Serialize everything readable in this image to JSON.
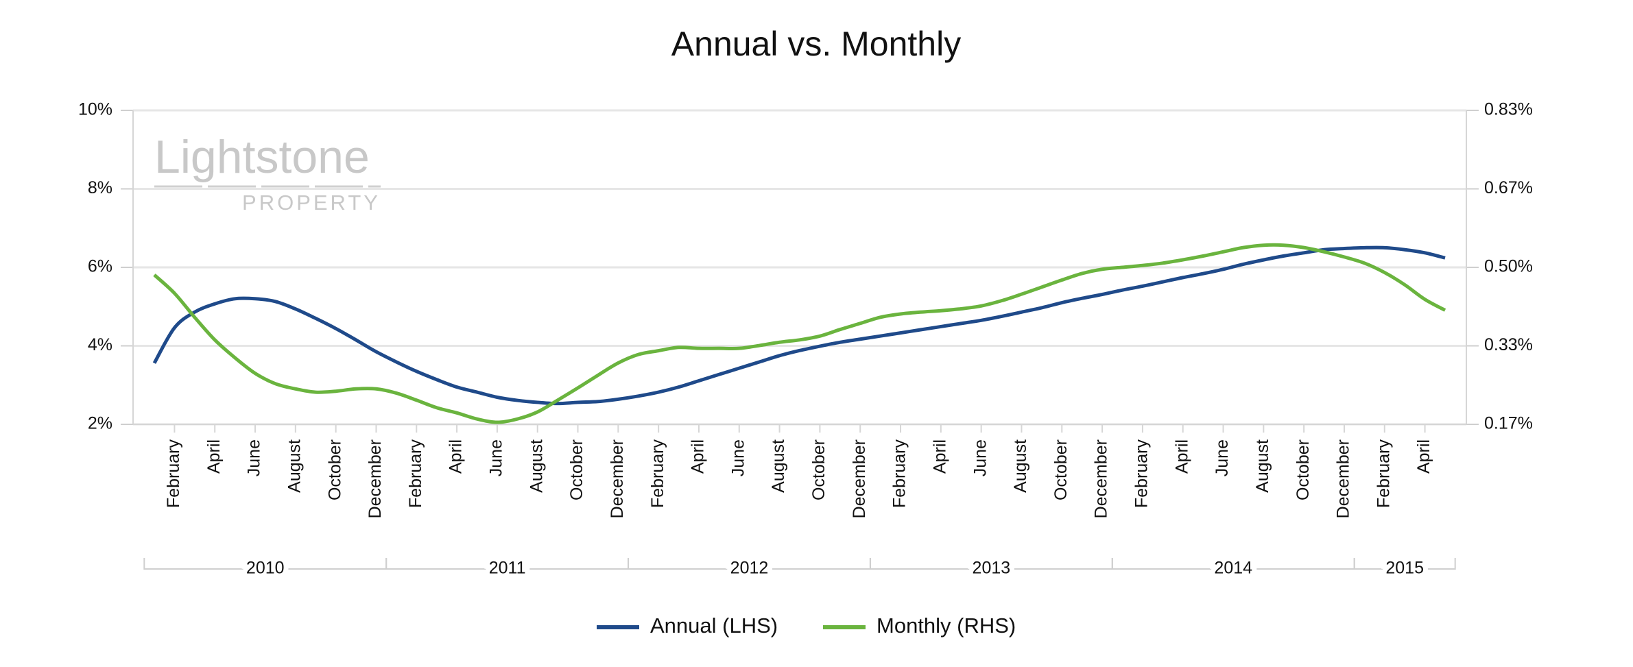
{
  "chart_data": {
    "type": "line",
    "title": "Annual vs. Monthly",
    "watermark": [
      "Lightstone",
      "PROPERTY"
    ],
    "categories": [
      null,
      "February",
      null,
      "April",
      null,
      "June",
      null,
      "August",
      null,
      "October",
      null,
      "December",
      null,
      "February",
      null,
      "April",
      null,
      "June",
      null,
      "August",
      null,
      "October",
      null,
      "December",
      null,
      "February",
      null,
      "April",
      null,
      "June",
      null,
      "August",
      null,
      "October",
      null,
      "December",
      null,
      "February",
      null,
      "April",
      null,
      "June",
      null,
      "August",
      null,
      "October",
      null,
      "December",
      null,
      "February",
      null,
      "April",
      null,
      "June",
      null,
      "August",
      null,
      "October",
      null,
      "December",
      null,
      "February",
      null,
      "April",
      null
    ],
    "x_groups": [
      "2010",
      "2011",
      "2012",
      "2013",
      "2014",
      "2015"
    ],
    "series": [
      {
        "name": "Annual (LHS)",
        "color": "#1f4a8a",
        "axis": "y",
        "values": [
          3.56,
          4.46,
          4.86,
          5.07,
          5.2,
          5.2,
          5.13,
          4.94,
          4.7,
          4.44,
          4.15,
          3.85,
          3.59,
          3.35,
          3.14,
          2.95,
          2.82,
          2.69,
          2.61,
          2.56,
          2.53,
          2.56,
          2.58,
          2.64,
          2.72,
          2.82,
          2.95,
          3.11,
          3.27,
          3.43,
          3.59,
          3.75,
          3.88,
          3.99,
          4.09,
          4.17,
          4.25,
          4.33,
          4.41,
          4.49,
          4.57,
          4.65,
          4.75,
          4.86,
          4.97,
          5.1,
          5.21,
          5.31,
          5.42,
          5.52,
          5.63,
          5.74,
          5.84,
          5.95,
          6.08,
          6.19,
          6.29,
          6.37,
          6.45,
          6.48,
          6.5,
          6.5,
          6.45,
          6.37,
          6.24
        ]
      },
      {
        "name": "Monthly (RHS)",
        "color": "#6ab43e",
        "axis": "y2",
        "values": [
          0.484,
          0.445,
          0.394,
          0.346,
          0.308,
          0.275,
          0.253,
          0.242,
          0.235,
          0.237,
          0.242,
          0.242,
          0.233,
          0.218,
          0.202,
          0.191,
          0.178,
          0.171,
          0.178,
          0.193,
          0.218,
          0.244,
          0.271,
          0.297,
          0.315,
          0.323,
          0.33,
          0.328,
          0.328,
          0.328,
          0.334,
          0.341,
          0.346,
          0.354,
          0.368,
          0.381,
          0.394,
          0.401,
          0.405,
          0.408,
          0.412,
          0.418,
          0.429,
          0.443,
          0.458,
          0.473,
          0.487,
          0.496,
          0.5,
          0.504,
          0.509,
          0.516,
          0.524,
          0.533,
          0.542,
          0.547,
          0.547,
          0.542,
          0.533,
          0.522,
          0.509,
          0.489,
          0.463,
          0.432,
          0.409
        ]
      }
    ],
    "ylim": [
      2,
      10
    ],
    "yticks": [
      {
        "value": 2,
        "label": "2%"
      },
      {
        "value": 4,
        "label": "4%"
      },
      {
        "value": 6,
        "label": "6%"
      },
      {
        "value": 8,
        "label": "8%"
      },
      {
        "value": 10,
        "label": "10%"
      }
    ],
    "y2lim": [
      0.1667,
      0.8333
    ],
    "y2ticks": [
      {
        "value": 0.1667,
        "label": "0.17%"
      },
      {
        "value": 0.3333,
        "label": "0.33%"
      },
      {
        "value": 0.5,
        "label": "0.50%"
      },
      {
        "value": 0.6667,
        "label": "0.67%"
      },
      {
        "value": 0.8333,
        "label": "0.83%"
      }
    ],
    "grid": true,
    "legend": "bottom"
  }
}
